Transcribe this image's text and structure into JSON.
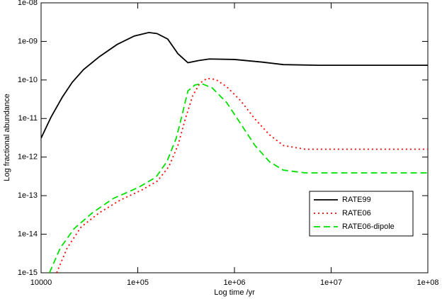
{
  "chart_data": {
    "type": "line",
    "xlabel": "Log time /yr",
    "ylabel": "Log fractional abundance",
    "xscale": "log",
    "yscale": "log",
    "xlim": [
      10000,
      100000000
    ],
    "ylim": [
      1e-15,
      1e-08
    ],
    "xticks": [
      10000,
      {
        "value": 100000,
        "label": "1e+05"
      },
      {
        "value": 1000000,
        "label": "1e+06"
      },
      {
        "value": 10000000,
        "label": "1e+07"
      },
      {
        "value": 100000000,
        "label": "1e+08"
      }
    ],
    "yticks": [
      {
        "value": 1e-15,
        "label": "1e-15"
      },
      {
        "value": 1e-14,
        "label": "1e-14"
      },
      {
        "value": 1e-13,
        "label": "1e-13"
      },
      {
        "value": 1e-12,
        "label": "1e-12"
      },
      {
        "value": 1e-11,
        "label": "1e-11"
      },
      {
        "value": 1e-10,
        "label": "1e-10"
      },
      {
        "value": 1e-09,
        "label": "1e-09"
      },
      {
        "value": 1e-08,
        "label": "1e-08"
      }
    ],
    "grid": false,
    "legend": "lower right",
    "series": [
      {
        "name": "RATE99",
        "color": "#000000",
        "style": "solid",
        "x": [
          10000,
          12700,
          16600,
          21000,
          27500,
          40000,
          61000,
          92000,
          130000,
          158000,
          204000,
          260000,
          330000,
          430000,
          550000,
          1000000,
          1950000,
          3200000,
          7400000,
          100000000
        ],
        "values": [
          3.1e-12,
          1.1e-11,
          3.6e-11,
          8.7e-11,
          1.86e-10,
          4e-10,
          8.3e-10,
          1.38e-09,
          1.7e-09,
          1.6e-09,
          1.15e-09,
          4.8e-10,
          2.8e-10,
          3.2e-10,
          3.5e-10,
          3.4e-10,
          2.9e-10,
          2.5e-10,
          2.4e-10,
          2.4e-10
        ]
      },
      {
        "name": "RATE06",
        "color": "#ff0000",
        "style": "dotted",
        "x": [
          14500,
          18600,
          26000,
          40000,
          66000,
          110000,
          160000,
          210000,
          260000,
          310000,
          370000,
          440000,
          520000,
          640000,
          830000,
          1160000,
          1630000,
          2300000,
          3200000,
          5400000,
          100000000
        ],
        "values": [
          1e-15,
          4.4e-15,
          1.55e-14,
          3.6e-14,
          7.7e-14,
          1.4e-13,
          2.4e-13,
          5.7e-13,
          2e-12,
          9.7e-12,
          3.9e-11,
          8.3e-11,
          1.1e-10,
          1.03e-10,
          6.7e-11,
          2.9e-11,
          9.7e-12,
          3.8e-12,
          2e-12,
          1.6e-12,
          1.6e-12
        ]
      },
      {
        "name": "RATE06-dipole",
        "color": "#00e000",
        "style": "dashed",
        "x": [
          12200,
          15800,
          22000,
          34000,
          56000,
          100000,
          154000,
          200000,
          250000,
          290000,
          330000,
          390000,
          460000,
          590000,
          830000,
          1160000,
          1630000,
          2300000,
          3200000,
          5400000,
          100000000
        ],
        "values": [
          1e-15,
          4.4e-15,
          1.4e-14,
          3.6e-14,
          8.5e-14,
          1.6e-13,
          3e-13,
          7.6e-13,
          3.1e-12,
          1.35e-11,
          5.2e-11,
          7.4e-11,
          8e-11,
          6.2e-11,
          2.6e-11,
          7.3e-12,
          2e-12,
          7.6e-13,
          4.6e-13,
          3.9e-13,
          3.9e-13
        ]
      }
    ]
  }
}
